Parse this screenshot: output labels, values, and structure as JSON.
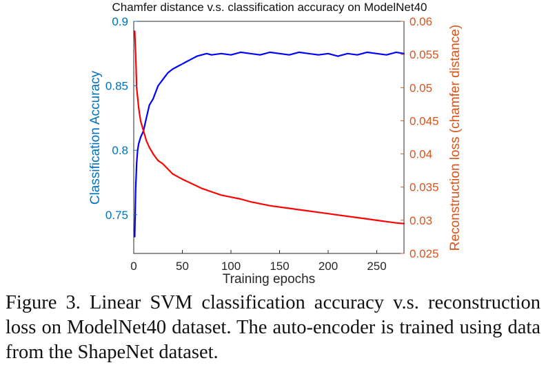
{
  "chart_data": {
    "type": "line",
    "title": "Chamfer distance v.s. classification accuracy on ModelNet40",
    "xlabel": "Training epochs",
    "ylabel_left": "Classification Accuracy",
    "ylabel_right": "Reconstruction loss (chamfer distance)",
    "xlim": [
      0,
      278
    ],
    "ylim_left": [
      0.72,
      0.9
    ],
    "ylim_right": [
      0.025,
      0.06
    ],
    "x_ticks": [
      "0",
      "50",
      "100",
      "150",
      "200",
      "250"
    ],
    "y_ticks_left": [
      "0.75",
      "0.8",
      "0.85",
      "0.9"
    ],
    "y_ticks_right": [
      "0.025",
      "0.03",
      "0.035",
      "0.04",
      "0.045",
      "0.05",
      "0.055",
      "0.06"
    ],
    "grid": false,
    "series": [
      {
        "axis": "left",
        "color": "#0000ff",
        "x": [
          1,
          2,
          3,
          4,
          5,
          7,
          10,
          13,
          16,
          20,
          25,
          30,
          35,
          40,
          45,
          50,
          55,
          60,
          65,
          70,
          75,
          80,
          90,
          100,
          110,
          120,
          130,
          140,
          150,
          160,
          170,
          180,
          190,
          200,
          210,
          220,
          230,
          240,
          250,
          260,
          270,
          278
        ],
        "y": [
          0.733,
          0.77,
          0.79,
          0.8,
          0.805,
          0.81,
          0.815,
          0.825,
          0.835,
          0.84,
          0.85,
          0.855,
          0.86,
          0.863,
          0.865,
          0.867,
          0.869,
          0.871,
          0.873,
          0.874,
          0.875,
          0.874,
          0.875,
          0.874,
          0.876,
          0.875,
          0.874,
          0.876,
          0.875,
          0.874,
          0.876,
          0.875,
          0.874,
          0.875,
          0.873,
          0.875,
          0.874,
          0.876,
          0.875,
          0.874,
          0.876,
          0.875
        ]
      },
      {
        "axis": "right",
        "color": "#ff0000",
        "x": [
          1,
          2,
          3,
          5,
          7,
          10,
          13,
          16,
          20,
          25,
          30,
          40,
          50,
          60,
          70,
          80,
          90,
          100,
          110,
          120,
          130,
          140,
          150,
          160,
          170,
          180,
          190,
          200,
          210,
          220,
          230,
          240,
          250,
          260,
          270,
          278
        ],
        "y": [
          0.0585,
          0.055,
          0.05,
          0.047,
          0.045,
          0.0435,
          0.042,
          0.041,
          0.04,
          0.039,
          0.0385,
          0.037,
          0.0362,
          0.0355,
          0.0348,
          0.0343,
          0.0338,
          0.0335,
          0.0332,
          0.0328,
          0.0325,
          0.0322,
          0.032,
          0.0318,
          0.0316,
          0.0314,
          0.0312,
          0.031,
          0.0308,
          0.0306,
          0.0304,
          0.0302,
          0.03,
          0.0298,
          0.0296,
          0.0295
        ]
      }
    ]
  },
  "caption": "Figure 3. Linear SVM classification accuracy v.s. reconstruction loss on ModelNet40 dataset. The auto-encoder is trained using data from the ShapeNet dataset."
}
